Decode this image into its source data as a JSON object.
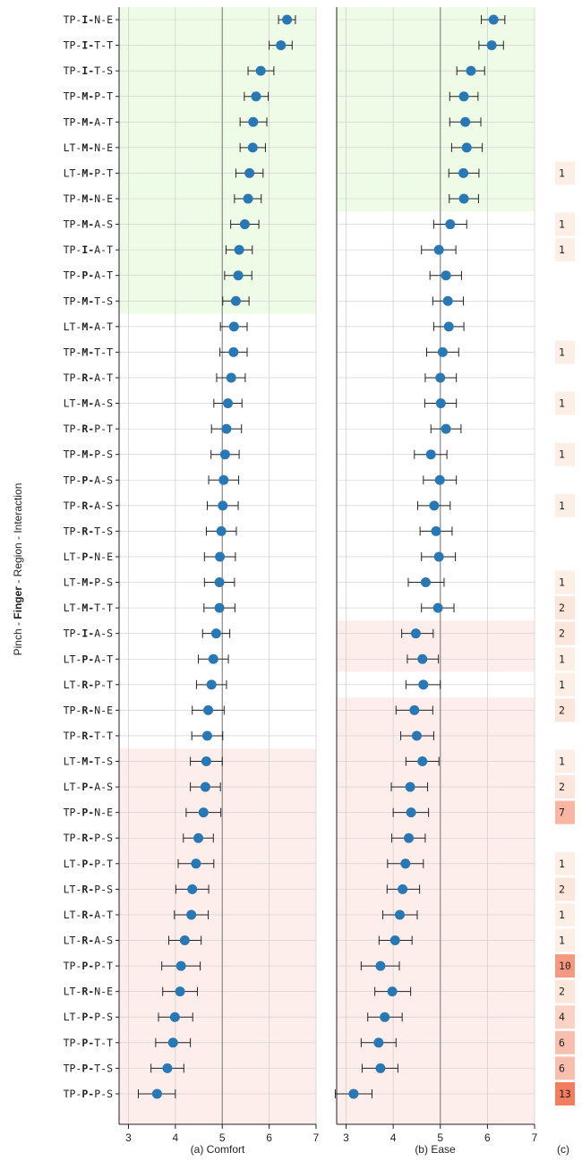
{
  "chart_data": [
    {
      "type": "scatter",
      "title": "(a) Comfort",
      "ylabel": "Pinch - Finger - Region - Interaction",
      "xlim": [
        2.8,
        7
      ],
      "xticks": [
        3,
        4,
        5,
        6,
        7
      ],
      "reference_line": 5,
      "grid": true,
      "categories": [
        "TP-I-N-E",
        "TP-I-T-T",
        "TP-I-T-S",
        "TP-M-P-T",
        "TP-M-A-T",
        "LT-M-N-E",
        "LT-M-P-T",
        "TP-M-N-E",
        "TP-M-A-S",
        "TP-I-A-T",
        "TP-P-A-T",
        "TP-M-T-S",
        "LT-M-A-T",
        "TP-M-T-T",
        "TP-R-A-T",
        "LT-M-A-S",
        "TP-R-P-T",
        "TP-M-P-S",
        "TP-P-A-S",
        "TP-R-A-S",
        "TP-R-T-S",
        "LT-P-N-E",
        "LT-M-P-S",
        "LT-M-T-T",
        "TP-I-A-S",
        "LT-P-A-T",
        "LT-R-P-T",
        "TP-R-N-E",
        "TP-R-T-T",
        "LT-M-T-S",
        "LT-P-A-S",
        "TP-P-N-E",
        "TP-R-P-S",
        "LT-P-P-T",
        "LT-R-P-S",
        "LT-R-A-T",
        "LT-R-A-S",
        "TP-P-P-T",
        "LT-R-N-E",
        "LT-P-P-S",
        "TP-P-T-T",
        "TP-P-T-S",
        "TP-P-P-S"
      ],
      "series": [
        {
          "values": [
            6.38,
            6.25,
            5.82,
            5.72,
            5.66,
            5.65,
            5.58,
            5.55,
            5.48,
            5.36,
            5.34,
            5.29,
            5.25,
            5.24,
            5.19,
            5.12,
            5.09,
            5.06,
            5.03,
            5.01,
            4.98,
            4.95,
            4.94,
            4.94,
            4.87,
            4.81,
            4.77,
            4.7,
            4.68,
            4.66,
            4.64,
            4.6,
            4.49,
            4.44,
            4.36,
            4.34,
            4.2,
            4.12,
            4.1,
            3.99,
            3.95,
            3.83,
            3.61
          ],
          "ci_low": [
            6.2,
            6.0,
            5.55,
            5.47,
            5.38,
            5.38,
            5.29,
            5.26,
            5.18,
            5.08,
            5.05,
            5.01,
            4.96,
            4.95,
            4.88,
            4.82,
            4.77,
            4.76,
            4.71,
            4.68,
            4.66,
            4.62,
            4.62,
            4.61,
            4.58,
            4.49,
            4.45,
            4.36,
            4.35,
            4.32,
            4.32,
            4.23,
            4.17,
            4.06,
            4.01,
            3.98,
            3.86,
            3.71,
            3.73,
            3.64,
            3.58,
            3.48,
            3.21
          ],
          "ci_high": [
            6.56,
            6.49,
            6.1,
            5.98,
            5.95,
            5.92,
            5.87,
            5.83,
            5.78,
            5.64,
            5.63,
            5.57,
            5.53,
            5.53,
            5.49,
            5.42,
            5.41,
            5.36,
            5.35,
            5.34,
            5.3,
            5.28,
            5.26,
            5.27,
            5.16,
            5.13,
            5.09,
            5.04,
            5.01,
            5.0,
            4.96,
            4.97,
            4.81,
            4.82,
            4.71,
            4.7,
            4.55,
            4.53,
            4.47,
            4.37,
            4.32,
            4.18,
            4.0
          ]
        }
      ]
    },
    {
      "type": "scatter",
      "title": "(b) Ease",
      "xlim": [
        2.8,
        7
      ],
      "xticks": [
        3,
        4,
        5,
        6,
        7
      ],
      "reference_line": 5,
      "grid": true,
      "series": [
        {
          "values": [
            6.13,
            6.09,
            5.65,
            5.5,
            5.53,
            5.56,
            5.49,
            5.5,
            5.21,
            4.97,
            5.12,
            5.16,
            5.18,
            5.05,
            5.0,
            5.01,
            5.12,
            4.8,
            4.99,
            4.87,
            4.91,
            4.97,
            4.69,
            4.95,
            4.48,
            4.62,
            4.64,
            4.45,
            4.5,
            4.62,
            4.36,
            4.38,
            4.33,
            4.26,
            4.2,
            4.14,
            4.04,
            3.73,
            3.98,
            3.82,
            3.69,
            3.73,
            3.16
          ],
          "ci_low": [
            5.87,
            5.82,
            5.35,
            5.2,
            5.2,
            5.24,
            5.18,
            5.19,
            4.86,
            4.6,
            4.78,
            4.84,
            4.86,
            4.71,
            4.68,
            4.67,
            4.8,
            4.45,
            4.64,
            4.52,
            4.57,
            4.6,
            4.32,
            4.6,
            4.18,
            4.3,
            4.27,
            4.06,
            4.16,
            4.27,
            3.96,
            4.0,
            3.97,
            3.88,
            3.87,
            3.78,
            3.7,
            3.32,
            3.61,
            3.46,
            3.32,
            3.34,
            2.77
          ],
          "ci_high": [
            6.37,
            6.34,
            5.94,
            5.8,
            5.86,
            5.89,
            5.82,
            5.81,
            5.56,
            5.33,
            5.45,
            5.49,
            5.5,
            5.39,
            5.34,
            5.34,
            5.44,
            5.14,
            5.34,
            5.21,
            5.25,
            5.32,
            5.08,
            5.29,
            4.85,
            4.96,
            5.0,
            4.84,
            4.86,
            4.97,
            4.73,
            4.75,
            4.68,
            4.64,
            4.56,
            4.51,
            4.4,
            4.13,
            4.37,
            4.19,
            4.06,
            4.1,
            3.55
          ]
        }
      ]
    },
    {
      "type": "table",
      "title": "(c)",
      "counts": [
        null,
        null,
        null,
        null,
        null,
        null,
        1,
        null,
        1,
        1,
        null,
        null,
        null,
        1,
        null,
        1,
        null,
        1,
        null,
        1,
        null,
        null,
        1,
        2,
        2,
        1,
        1,
        2,
        null,
        1,
        2,
        7,
        null,
        1,
        2,
        1,
        1,
        10,
        2,
        4,
        6,
        6,
        13
      ],
      "max": 13
    }
  ],
  "colors": {
    "marker": "#2878b5",
    "whisker": "#222222",
    "green_band": "#eefbe6",
    "red_band": "#fdeeec",
    "count_low": "#fdeee6",
    "count_high": "#f47d5f",
    "gridline": "#cccccc",
    "ref_line": "#888888"
  }
}
